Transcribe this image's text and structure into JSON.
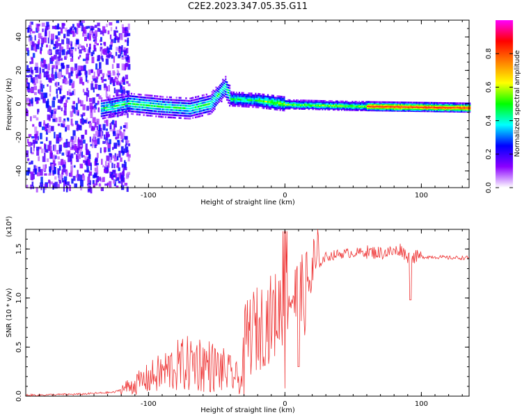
{
  "title": "C2E2.2023.347.05.35.G11",
  "chart_data": [
    {
      "type": "heatmap",
      "xlabel": "Height of straight line (km)",
      "ylabel": "Frequency (Hz)",
      "xlim": [
        -190,
        135
      ],
      "ylim": [
        -50,
        50
      ],
      "xticks": [
        -100,
        0,
        100
      ],
      "xtick_labels": [
        "-100",
        "0",
        "100"
      ],
      "yticks": [
        -40,
        -20,
        0,
        20,
        40
      ],
      "ytick_labels": [
        "-40",
        "-20",
        "0",
        "20",
        "40"
      ],
      "colorbar": {
        "label": "Normalized spectral amplitude",
        "range": [
          0,
          1
        ],
        "ticks": [
          0.0,
          0.2,
          0.4,
          0.6,
          0.8
        ],
        "tick_labels": [
          "0.0",
          "0.2",
          "0.4",
          "0.6",
          "0.8"
        ],
        "colors": [
          "#ffffff",
          "#8b00ff",
          "#0000ff",
          "#00ffff",
          "#00ff00",
          "#ffff00",
          "#ff8000",
          "#ff0000",
          "#ff00ff"
        ]
      },
      "features": {
        "noise_region_x": [
          -190,
          -115
        ],
        "ridge": [
          {
            "x": -135,
            "f": -3
          },
          {
            "x": -115,
            "f": 0
          },
          {
            "x": -90,
            "f": -2
          },
          {
            "x": -70,
            "f": -3
          },
          {
            "x": -55,
            "f": 0
          },
          {
            "x": -44,
            "f": 10
          },
          {
            "x": -40,
            "f": 3
          },
          {
            "x": -20,
            "f": 2
          },
          {
            "x": 0,
            "f": 0
          },
          {
            "x": 50,
            "f": -1
          },
          {
            "x": 135,
            "f": -2
          }
        ]
      }
    },
    {
      "type": "line",
      "xlabel": "Height of straight line (km)",
      "ylabel": "SNR (10 * v/v)",
      "y_multiplier": "(x10⁴)",
      "xlim": [
        -190,
        135
      ],
      "ylim": [
        0,
        1.7
      ],
      "xticks": [
        -100,
        0,
        100
      ],
      "xtick_labels": [
        "-100",
        "0",
        "100"
      ],
      "yticks": [
        0,
        0.5,
        1.0,
        1.5
      ],
      "ytick_labels": [
        "0.0",
        "0.5",
        "1.0",
        "1.5"
      ],
      "line_color": "#ee3333",
      "series": [
        {
          "x": [
            -190,
            -150,
            -125,
            -118,
            -110,
            -100,
            -90,
            -80,
            -70,
            -65,
            -60,
            -55,
            -50,
            -45,
            -40,
            -35,
            -32,
            -28,
            -25,
            -20,
            -15,
            -10,
            -5,
            0,
            5,
            10,
            15,
            20,
            25,
            30,
            40,
            50,
            60,
            70,
            80,
            85,
            88,
            92,
            95,
            100,
            110,
            120,
            135
          ],
          "y": [
            0.01,
            0.02,
            0.04,
            0.08,
            0.12,
            0.18,
            0.24,
            0.3,
            0.33,
            0.35,
            0.33,
            0.31,
            0.28,
            0.26,
            0.22,
            0.18,
            0.15,
            0.6,
            0.65,
            0.68,
            0.75,
            0.8,
            0.85,
            1.0,
            1.05,
            0.95,
            1.05,
            1.25,
            1.35,
            1.42,
            1.45,
            1.46,
            1.47,
            1.46,
            1.47,
            1.5,
            1.45,
            1.4,
            1.42,
            1.42,
            1.42,
            1.41,
            1.41
          ]
        }
      ],
      "dips": [
        {
          "x": 0,
          "y": 0.08
        },
        {
          "x": 10,
          "y": 0.3
        },
        {
          "x": 92,
          "y": 0.98
        }
      ]
    }
  ]
}
